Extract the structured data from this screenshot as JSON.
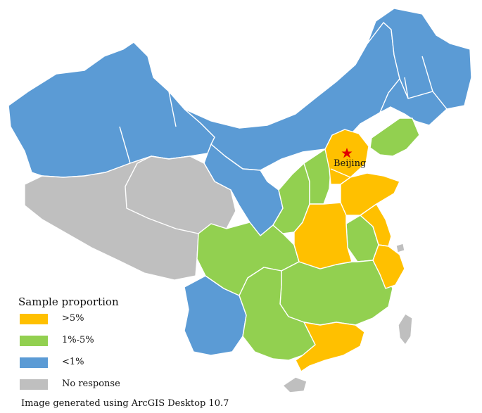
{
  "legend": {
    "title": "Sample proportion",
    "items": [
      {
        "label": ">5%",
        "color": "#FFC000"
      },
      {
        "label": "1%-5%",
        "color": "#92D050"
      },
      {
        "label": "<1%",
        "color": "#5B9BD5"
      },
      {
        "label": "No response",
        "color": "#BFBFBF"
      }
    ]
  },
  "capital": {
    "label": "Beijing",
    "marker_color": "#E00000"
  },
  "caption": "Image generated using ArcGIS Desktop 10.7"
}
